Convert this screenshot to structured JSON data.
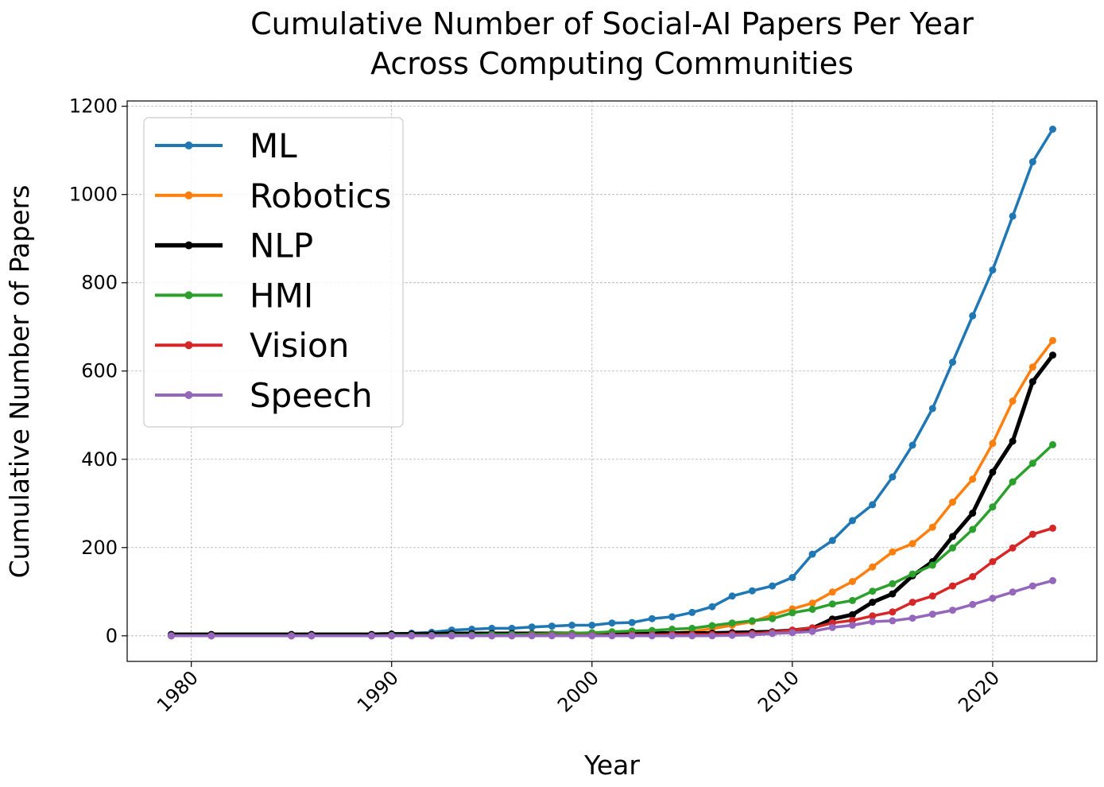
{
  "chart_data": {
    "type": "line",
    "title": "Cumulative Number of Social-AI Papers Per Year",
    "subtitle": "Across Computing Communities",
    "xlabel": "Year",
    "ylabel": "Cumulative Number of Papers",
    "xlim": [
      1976.8,
      2025.2
    ],
    "ylim": [
      -58,
      1212
    ],
    "xticks": [
      1980,
      1990,
      2000,
      2010,
      2020
    ],
    "yticks": [
      0,
      200,
      400,
      600,
      800,
      1000,
      1200
    ],
    "grid": true,
    "legend_position": "upper-left",
    "x": [
      1979,
      1981,
      1985,
      1986,
      1989,
      1990,
      1991,
      1992,
      1993,
      1994,
      1995,
      1996,
      1997,
      1998,
      1999,
      2000,
      2001,
      2002,
      2003,
      2004,
      2005,
      2006,
      2007,
      2008,
      2009,
      2010,
      2011,
      2012,
      2013,
      2014,
      2015,
      2016,
      2017,
      2018,
      2019,
      2020,
      2021,
      2022,
      2023
    ],
    "series": [
      {
        "name": "ML",
        "color": "#1f77b4",
        "width": 3.5,
        "values": [
          1,
          1,
          1,
          2,
          2,
          4,
          6,
          8,
          13,
          15,
          17,
          17,
          20,
          22,
          24,
          24,
          29,
          30,
          39,
          43,
          53,
          66,
          90,
          102,
          113,
          132,
          185,
          216,
          261,
          297,
          360,
          432,
          515,
          620,
          725,
          829,
          951,
          1074,
          1148
        ]
      },
      {
        "name": "Robotics",
        "color": "#ff7f0e",
        "width": 3.5,
        "values": [
          0,
          0,
          0,
          0,
          0,
          1,
          1,
          1,
          1,
          2,
          2,
          2,
          2,
          3,
          3,
          3,
          4,
          4,
          5,
          6,
          10,
          16,
          24,
          32,
          47,
          61,
          74,
          99,
          123,
          156,
          190,
          209,
          246,
          303,
          355,
          436,
          532,
          609,
          669
        ]
      },
      {
        "name": "NLP",
        "color": "#000000",
        "width": 5,
        "values": [
          3,
          3,
          3,
          3,
          3,
          4,
          4,
          4,
          5,
          5,
          5,
          5,
          5,
          5,
          5,
          5,
          5,
          6,
          6,
          6,
          6,
          6,
          7,
          8,
          9,
          12,
          17,
          38,
          48,
          76,
          95,
          136,
          168,
          225,
          278,
          371,
          441,
          576,
          636
        ]
      },
      {
        "name": "HMI",
        "color": "#2ca02c",
        "width": 3.5,
        "values": [
          0,
          0,
          0,
          0,
          0,
          1,
          1,
          1,
          2,
          2,
          3,
          3,
          4,
          5,
          6,
          7,
          9,
          11,
          12,
          15,
          17,
          23,
          29,
          34,
          39,
          52,
          60,
          72,
          80,
          101,
          118,
          140,
          160,
          199,
          241,
          292,
          349,
          391,
          433
        ]
      },
      {
        "name": "Vision",
        "color": "#d62728",
        "width": 3.5,
        "values": [
          0,
          0,
          0,
          0,
          0,
          0,
          0,
          0,
          0,
          0,
          0,
          0,
          1,
          1,
          1,
          1,
          1,
          2,
          2,
          3,
          3,
          3,
          4,
          5,
          8,
          13,
          18,
          29,
          35,
          45,
          54,
          76,
          90,
          113,
          134,
          168,
          199,
          230,
          244
        ]
      },
      {
        "name": "Speech",
        "color": "#9467bd",
        "width": 3.5,
        "values": [
          0,
          0,
          0,
          0,
          0,
          0,
          0,
          0,
          0,
          0,
          0,
          0,
          0,
          0,
          0,
          0,
          0,
          0,
          0,
          0,
          0,
          0,
          1,
          2,
          5,
          7,
          10,
          19,
          24,
          32,
          34,
          40,
          49,
          58,
          71,
          85,
          99,
          113,
          125
        ]
      }
    ]
  }
}
